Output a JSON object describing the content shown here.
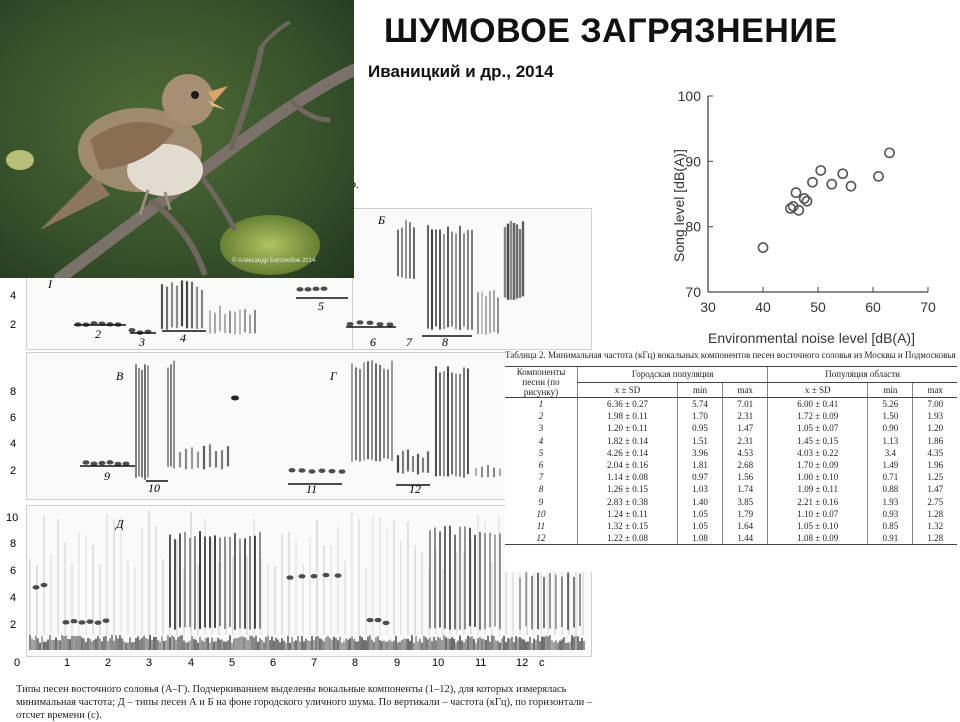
{
  "header": {
    "title": "ШУМОВОЕ ЗАГРЯЗНЕНИЕ",
    "citation": "Иваницкий и др., 2014"
  },
  "photo": {
    "watermark": "© Александр Боголюбов 2014",
    "colors": {
      "background": "#3f5a2a",
      "bird": "#a08a6e",
      "branch": "#7a7268"
    }
  },
  "spectrogram": {
    "frequency_ticks": [
      "2",
      "4",
      "2",
      "4",
      "6",
      "8",
      "2",
      "4",
      "6",
      "8",
      "10"
    ],
    "time_ticks": [
      "0",
      "1",
      "2",
      "3",
      "4",
      "5",
      "6",
      "7",
      "8",
      "9",
      "10",
      "11",
      "12",
      "c"
    ],
    "panel_labels": [
      "Б",
      "I",
      "В",
      "Г",
      "Д"
    ],
    "component_numbers": [
      "5",
      "2",
      "3",
      "4",
      "6",
      "7",
      "8",
      "9",
      "10",
      "11",
      "12"
    ],
    "fragment": "р.",
    "caption": "Типы песен восточного соловья (А–Г). Подчеркиванием выделены вокальные компоненты (1–12), для которых измерялась минимальная частота; Д – типы песен А и Б на фоне городского уличного шума. По вертикали – частота (кГц), по горизонтали – отсчет времени (с)."
  },
  "table": {
    "caption": "Таблица 2. Минимальная частота (кГц) вокальных компонентов песен восточного соловья из Москвы и Подмосковья",
    "header_component": "Компоненты песни (по рисунку)",
    "header_city": "Городская популяция",
    "header_region": "Популяция области",
    "sub_headers": [
      "x ± SD",
      "min",
      "max",
      "x ± SD",
      "min",
      "max"
    ],
    "rows": [
      [
        "1",
        "6.36 ± 0.27",
        "5.74",
        "7.01",
        "6.00 ± 0.41",
        "5.26",
        "7.00"
      ],
      [
        "2",
        "1.98 ± 0.11",
        "1.70",
        "2.31",
        "1.72 ± 0.09",
        "1.50",
        "1.93"
      ],
      [
        "3",
        "1.20 ± 0.11",
        "0.95",
        "1.47",
        "1.05 ± 0.07",
        "0.90",
        "1.20"
      ],
      [
        "4",
        "1.82 ± 0.14",
        "1.51",
        "2.31",
        "1.45 ± 0.15",
        "1.13",
        "1.86"
      ],
      [
        "5",
        "4.26 ± 0.14",
        "3.96",
        "4.53",
        "4.03 ± 0.22",
        "3.4",
        "4.35"
      ],
      [
        "6",
        "2.04 ± 0.16",
        "1.81",
        "2.68",
        "1.70 ± 0.09",
        "1.49",
        "1.96"
      ],
      [
        "7",
        "1.14 ± 0.08",
        "0.97",
        "1.56",
        "1.00 ± 0.10",
        "0.71",
        "1.25"
      ],
      [
        "8",
        "1.26 ± 0.15",
        "1.03",
        "1.74",
        "1.09 ± 0.11",
        "0.88",
        "1.47"
      ],
      [
        "9",
        "2.83 ± 0.38",
        "1.40",
        "3.85",
        "2.21 ± 0.16",
        "1.93",
        "2.75"
      ],
      [
        "10",
        "1.24 ± 0.11",
        "1.05",
        "1.79",
        "1.10 ± 0.07",
        "0.93",
        "1.28"
      ],
      [
        "11",
        "1.32 ± 0.15",
        "1.05",
        "1.64",
        "1.05 ± 0.10",
        "0.85",
        "1.32"
      ],
      [
        "12",
        "1.22 ± 0.08",
        "1.08",
        "1.44",
        "1.08 ± 0.09",
        "0.91",
        "1.28"
      ]
    ]
  },
  "chart_data": {
    "type": "scatter",
    "xlabel": "Environmental noise level [dB(A)]",
    "ylabel": "Song level [dB(A)]",
    "xlim": [
      30,
      70
    ],
    "ylim": [
      70,
      100
    ],
    "x_ticks": [
      "30",
      "40",
      "50",
      "60",
      "70"
    ],
    "y_ticks": [
      "70",
      "80",
      "90",
      "100"
    ],
    "grid": false,
    "marker": "open-circle",
    "marker_color": "#555555",
    "x": [
      40,
      45,
      45.5,
      46,
      46.5,
      47.5,
      48,
      49,
      50.5,
      52.5,
      54.5,
      56,
      61,
      63
    ],
    "y": [
      76.8,
      82.8,
      83.1,
      85.2,
      82.5,
      84.3,
      83.9,
      86.8,
      88.6,
      86.5,
      88.1,
      86.2,
      87.7,
      91.3
    ]
  }
}
